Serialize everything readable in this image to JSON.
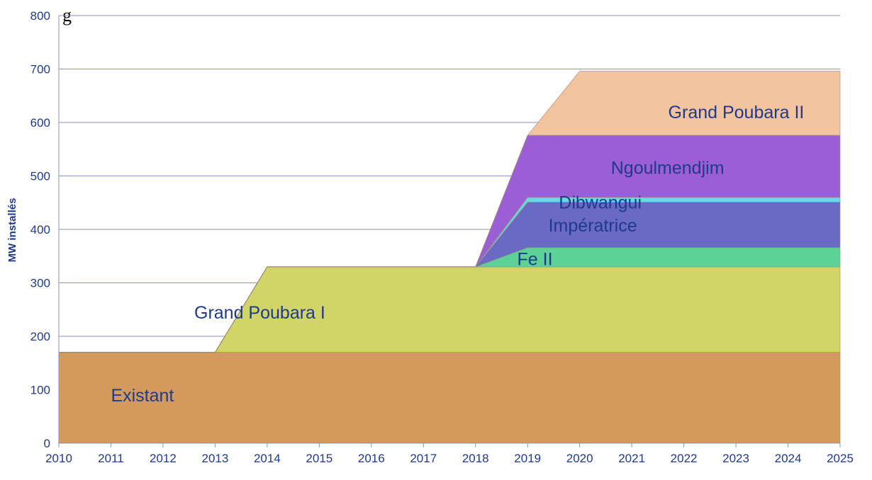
{
  "chart_data": {
    "type": "area",
    "title": "",
    "title_partial": "g",
    "xlabel": "",
    "ylabel": "MW installés",
    "x": [
      2010,
      2011,
      2012,
      2013,
      2014,
      2015,
      2016,
      2017,
      2018,
      2019,
      2020,
      2021,
      2022,
      2023,
      2024,
      2025
    ],
    "x_tick_labels": [
      "2010",
      "2011",
      "2012",
      "2013",
      "2014",
      "2015",
      "2016",
      "2017",
      "2018",
      "2019",
      "2020",
      "2021",
      "2022",
      "2023",
      "2024",
      "2025"
    ],
    "y_tick_labels": [
      "0",
      "100",
      "200",
      "300",
      "400",
      "500",
      "600",
      "700",
      "800"
    ],
    "xlim": [
      2010,
      2025
    ],
    "ylim": [
      0,
      800
    ],
    "grid": true,
    "stacked": true,
    "series": [
      {
        "name": "Existant",
        "color": "#d49a5c",
        "label_pos": [
          2011.0,
          90
        ],
        "points": [
          [
            2010,
            170
          ],
          [
            2025,
            170
          ]
        ]
      },
      {
        "name": "Grand Poubara I",
        "color": "#d1d466",
        "label_pos": [
          2012.6,
          245
        ],
        "points": [
          [
            2010,
            0
          ],
          [
            2013,
            0
          ],
          [
            2014,
            160
          ],
          [
            2025,
            160
          ]
        ]
      },
      {
        "name": "Fe II",
        "color": "#5cd198",
        "label_pos": [
          2018.8,
          345
        ],
        "points": [
          [
            2010,
            0
          ],
          [
            2018,
            0
          ],
          [
            2019,
            36
          ],
          [
            2025,
            36
          ]
        ]
      },
      {
        "name": "Impératrice",
        "color": "#6a6ac4",
        "label_pos": [
          2019.4,
          408
        ],
        "points": [
          [
            2010,
            0
          ],
          [
            2018,
            0
          ],
          [
            2019,
            85
          ],
          [
            2025,
            85
          ]
        ]
      },
      {
        "name": "Dibwangui",
        "color": "#6ad8e0",
        "label_pos": [
          2019.6,
          451
        ],
        "points": [
          [
            2010,
            0
          ],
          [
            2018,
            0
          ],
          [
            2019,
            9
          ],
          [
            2025,
            9
          ]
        ]
      },
      {
        "name": "Ngoulmendjim",
        "color": "#9b5ed4",
        "label_pos": [
          2020.6,
          516
        ],
        "points": [
          [
            2010,
            0
          ],
          [
            2018,
            0
          ],
          [
            2019,
            116
          ],
          [
            2025,
            116
          ]
        ]
      },
      {
        "name": "Grand Poubara II",
        "color": "#f1c49f",
        "label_pos": [
          2021.7,
          620
        ],
        "points": [
          [
            2010,
            0
          ],
          [
            2019,
            0
          ],
          [
            2020,
            120
          ],
          [
            2025,
            120
          ]
        ]
      }
    ]
  }
}
